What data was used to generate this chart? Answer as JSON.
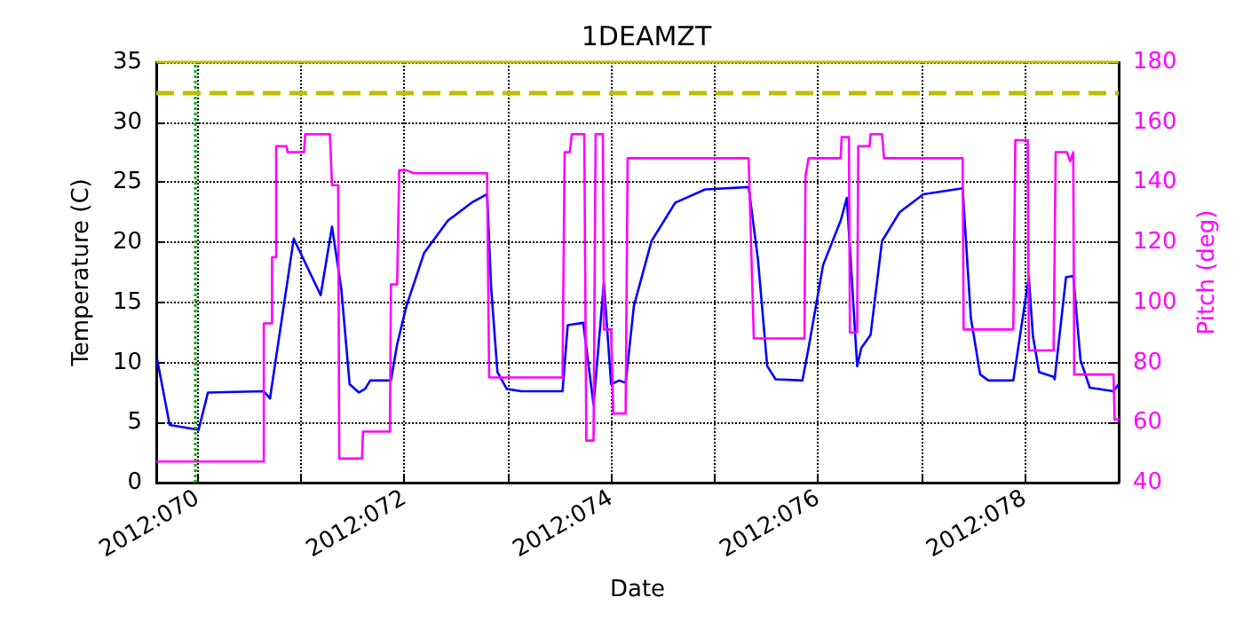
{
  "chart_data": {
    "type": "line",
    "title": "1DEAMZT",
    "xlabel": "Date",
    "ylabel": "Temperature (C)",
    "y2label": "Pitch (deg)",
    "xlim": [
      "2012-03-09T14:24",
      "2012-03-18T21:50"
    ],
    "xticks": [
      {
        "value": "2012-03-10",
        "label": "2012:070"
      },
      {
        "value": "2012-03-11",
        "label": null
      },
      {
        "value": "2012-03-12",
        "label": "2012:072"
      },
      {
        "value": "2012-03-13",
        "label": null
      },
      {
        "value": "2012-03-14",
        "label": "2012:074"
      },
      {
        "value": "2012-03-15",
        "label": null
      },
      {
        "value": "2012-03-16",
        "label": "2012:076"
      },
      {
        "value": "2012-03-17",
        "label": null
      },
      {
        "value": "2012-03-18",
        "label": "2012:078"
      }
    ],
    "ylim": [
      0,
      35
    ],
    "yticks": [
      0,
      5,
      10,
      15,
      20,
      25,
      30,
      35
    ],
    "y2lim": [
      40,
      180
    ],
    "y2ticks": [
      40,
      60,
      80,
      100,
      120,
      140,
      160,
      180
    ],
    "grid": true,
    "marker": "none",
    "line_style": "solid",
    "series": [
      {
        "color": "#0000ff",
        "axis": "y",
        "x": [
          "2012-03-09T14:38",
          "2012-03-09T17:31",
          "2012-03-10T00:14",
          "2012-03-10T02:24",
          "2012-03-10T15:22",
          "2012-03-10T16:48",
          "2012-03-10T22:19",
          "2012-03-11T04:34",
          "2012-03-11T07:12",
          "2012-03-11T09:22",
          "2012-03-11T11:17",
          "2012-03-11T13:26",
          "2012-03-11T14:53",
          "2012-03-11T16:05",
          "2012-03-11T20:53",
          "2012-03-11T22:19",
          "2012-03-12T00:29",
          "2012-03-12T04:34",
          "2012-03-12T10:05",
          "2012-03-12T15:36",
          "2012-03-12T19:12",
          "2012-03-12T20:10",
          "2012-03-12T21:36",
          "2012-03-12T23:46",
          "2012-03-13T03:07",
          "2012-03-13T12:43",
          "2012-03-13T13:55",
          "2012-03-13T17:31",
          "2012-03-13T19:55",
          "2012-03-13T22:19",
          "2012-03-14T00:00",
          "2012-03-14T01:55",
          "2012-03-14T03:22",
          "2012-03-14T05:17",
          "2012-03-14T09:22",
          "2012-03-14T14:53",
          "2012-03-14T21:50",
          "2012-03-15T07:55",
          "2012-03-15T10:05",
          "2012-03-15T12:14",
          "2012-03-15T14:10",
          "2012-03-15T20:24",
          "2012-03-15T21:50",
          "2012-03-16T01:12",
          "2012-03-16T05:17",
          "2012-03-16T06:43",
          "2012-03-16T09:07",
          "2012-03-16T10:05",
          "2012-03-16T12:14",
          "2012-03-16T14:53",
          "2012-03-16T18:58",
          "2012-03-17T00:29",
          "2012-03-17T09:36",
          "2012-03-17T11:31",
          "2012-03-17T13:41",
          "2012-03-17T15:36",
          "2012-03-17T21:22",
          "2012-03-18T00:58",
          "2012-03-18T01:55",
          "2012-03-18T03:22",
          "2012-03-18T06:43",
          "2012-03-18T06:58",
          "2012-03-18T09:36",
          "2012-03-18T11:17",
          "2012-03-18T12:58",
          "2012-03-18T15:07",
          "2012-03-18T20:38",
          "2012-03-18T21:50"
        ],
        "values": [
          10.2,
          4.8,
          4.4,
          7.5,
          7.6,
          7.0,
          20.3,
          15.6,
          21.3,
          16.1,
          8.2,
          7.5,
          7.8,
          8.5,
          8.5,
          11.5,
          14.7,
          19.1,
          21.8,
          23.3,
          24.0,
          16.1,
          9.2,
          7.8,
          7.6,
          7.6,
          13.1,
          13.3,
          6.5,
          16.6,
          8.2,
          8.5,
          8.3,
          14.7,
          20.1,
          23.3,
          24.4,
          24.6,
          18.6,
          9.7,
          8.6,
          8.5,
          11.2,
          18.1,
          21.8,
          23.7,
          9.7,
          11.2,
          12.3,
          20.1,
          22.5,
          24.0,
          24.5,
          13.7,
          9.0,
          8.5,
          8.5,
          17.1,
          12.2,
          9.2,
          8.8,
          8.6,
          17.1,
          17.2,
          10.2,
          7.9,
          7.6,
          8.2
        ]
      },
      {
        "color": "#ff00ff",
        "axis": "y2",
        "x": [
          "2012-03-09T14:38",
          "2012-03-10T15:22",
          "2012-03-10T15:22",
          "2012-03-10T17:17",
          "2012-03-10T17:17",
          "2012-03-10T18:14",
          "2012-03-10T18:14",
          "2012-03-10T20:38",
          "2012-03-10T20:53",
          "2012-03-11T00:43",
          "2012-03-11T00:58",
          "2012-03-11T06:43",
          "2012-03-11T07:12",
          "2012-03-11T08:38",
          "2012-03-11T08:53",
          "2012-03-11T14:10",
          "2012-03-11T14:24",
          "2012-03-11T20:38",
          "2012-03-11T20:53",
          "2012-03-11T22:19",
          "2012-03-11T22:48",
          "2012-03-12T00:29",
          "2012-03-12T02:10",
          "2012-03-12T19:12",
          "2012-03-12T19:41",
          "2012-03-13T12:43",
          "2012-03-13T13:12",
          "2012-03-13T14:24",
          "2012-03-13T14:53",
          "2012-03-13T17:46",
          "2012-03-13T18:14",
          "2012-03-13T19:55",
          "2012-03-13T20:24",
          "2012-03-13T22:05",
          "2012-03-13T22:19",
          "2012-03-14T00:00",
          "2012-03-14T00:29",
          "2012-03-14T03:22",
          "2012-03-14T03:50",
          "2012-03-15T07:55",
          "2012-03-15T09:07",
          "2012-03-15T20:53",
          "2012-03-15T21:07",
          "2012-03-15T21:50",
          "2012-03-16T05:17",
          "2012-03-16T05:31",
          "2012-03-16T07:12",
          "2012-03-16T07:26",
          "2012-03-16T09:07",
          "2012-03-16T09:22",
          "2012-03-16T12:00",
          "2012-03-16T12:14",
          "2012-03-16T14:53",
          "2012-03-16T15:22",
          "2012-03-17T09:36",
          "2012-03-17T09:50",
          "2012-03-17T21:22",
          "2012-03-17T21:50",
          "2012-03-18T00:43",
          "2012-03-18T00:58",
          "2012-03-18T06:43",
          "2012-03-18T07:12",
          "2012-03-18T09:50",
          "2012-03-18T10:34",
          "2012-03-18T11:17",
          "2012-03-18T11:31",
          "2012-03-18T20:38",
          "2012-03-18T20:53",
          "2012-03-18T21:50"
        ],
        "values": [
          47,
          47,
          93,
          93,
          115,
          115,
          152,
          152,
          150,
          150,
          156,
          156,
          139,
          139,
          48,
          48,
          57,
          57,
          106,
          106,
          144,
          144,
          143,
          143,
          75,
          75,
          150,
          150,
          156,
          156,
          54,
          54,
          156,
          156,
          91,
          91,
          63,
          63,
          148,
          148,
          88,
          88,
          142,
          148,
          148,
          155,
          155,
          90,
          90,
          152,
          152,
          156,
          156,
          148,
          148,
          91,
          91,
          154,
          154,
          84,
          84,
          150,
          150,
          147,
          150,
          76,
          76,
          61,
          61
        ]
      }
    ],
    "ref_lines": [
      {
        "axis": "x",
        "value": "2012-03-09T23:31",
        "color": "#00aa00",
        "line_style": "dotted"
      },
      {
        "axis": "y",
        "value": 32.5,
        "color": "#bfbf00",
        "line_style": "dashed"
      },
      {
        "axis": "y",
        "value": 35,
        "color": "#bfbf00",
        "line_style": "solid"
      }
    ]
  }
}
